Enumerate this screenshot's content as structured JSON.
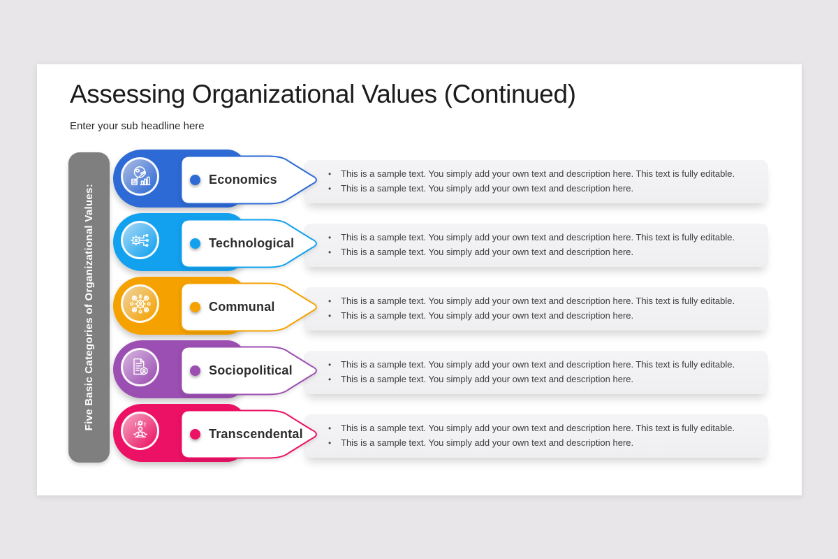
{
  "slide": {
    "title": "Assessing Organizational Values (Continued)",
    "subtitle": "Enter your sub headline here"
  },
  "sidebar": {
    "label": "Five Basic Categories of Organizational Values:",
    "bg_color": "#7f7f7f",
    "text_color": "#ffffff"
  },
  "colors": {
    "page_background": "#e8e6e9",
    "slide_background": "#ffffff",
    "textbox_background": "#f2f1f2",
    "body_text": "#3e3e3e",
    "label_text": "#2d2d2d"
  },
  "rows": [
    {
      "label": "Economics",
      "icon": "economics-icon",
      "color": "#2d6ad5",
      "color_light": "#adbce2",
      "bullets": [
        "This is a sample text. You simply add your own text and description here. This text is fully editable.",
        "This is a sample text. You simply add your own text and description here."
      ]
    },
    {
      "label": "Technological",
      "icon": "technological-icon",
      "color": "#12a1ef",
      "color_light": "#a9d9f6",
      "bullets": [
        "This is a sample text. You simply add your own text and description here. This text is fully editable.",
        "This is a sample text. You simply add your own text and description here."
      ]
    },
    {
      "label": "Communal",
      "icon": "communal-icon",
      "color": "#f5a201",
      "color_light": "#eed4a2",
      "bullets": [
        "This is a sample text. You simply add your own text and description here. This text is fully editable.",
        "This is a sample text. You simply add your own text and description here."
      ]
    },
    {
      "label": "Sociopolitical",
      "icon": "sociopolitical-icon",
      "color": "#9c4fb2",
      "color_light": "#d6b5e0",
      "bullets": [
        "This is a sample text. You simply add your own text and description here. This text is fully editable.",
        "This is a sample text. You simply add your own text and description here."
      ]
    },
    {
      "label": "Transcendental",
      "icon": "transcendental-icon",
      "color": "#ec1164",
      "color_light": "#f3a7c2",
      "bullets": [
        "This is a sample text. You simply add your own text and description here. This text is fully editable.",
        "This is a sample text. You simply add your own text and description here."
      ]
    }
  ]
}
